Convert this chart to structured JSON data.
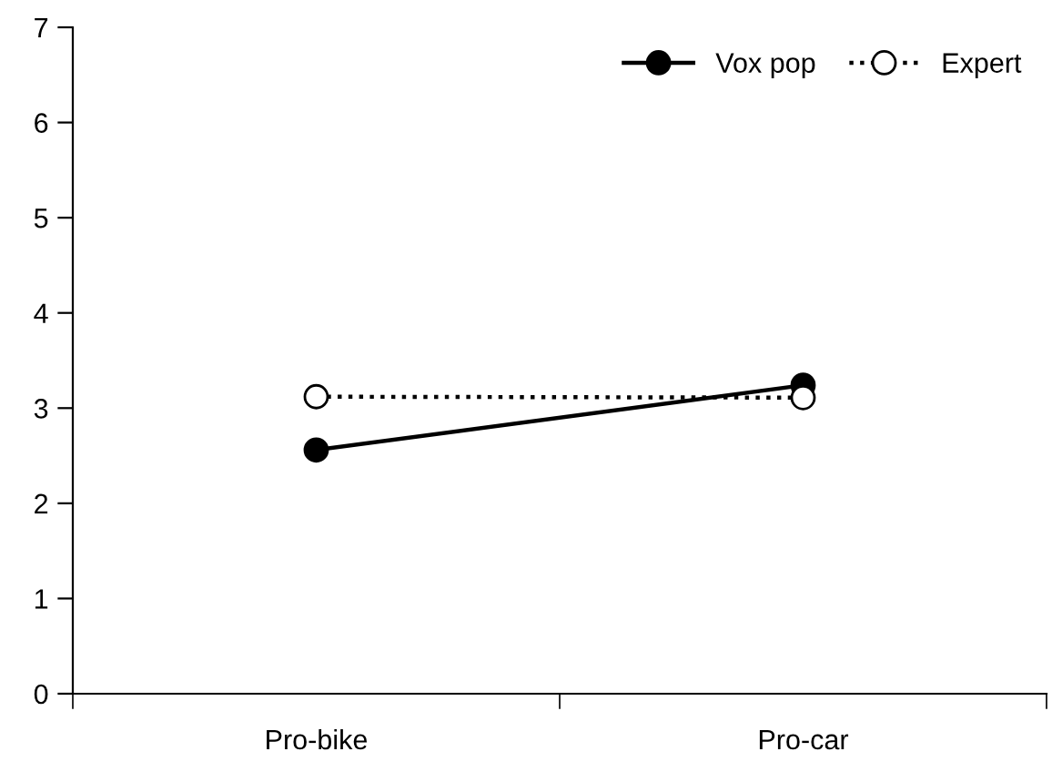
{
  "chart_data": {
    "type": "line",
    "categories": [
      "Pro-bike",
      "Pro-car"
    ],
    "series": [
      {
        "name": "Vox pop",
        "color": "#000000",
        "values": [
          2.56,
          3.24
        ],
        "marker": "circle",
        "line_style": "solid"
      },
      {
        "name": "Expert",
        "color": "#000000",
        "values": [
          3.12,
          3.11
        ],
        "marker": "circle",
        "line_style": "dotted"
      }
    ],
    "ylim": [
      0,
      7
    ],
    "yticks": [
      0,
      1,
      2,
      3,
      4,
      5,
      6,
      7
    ],
    "grid": false,
    "legend": "top right"
  }
}
